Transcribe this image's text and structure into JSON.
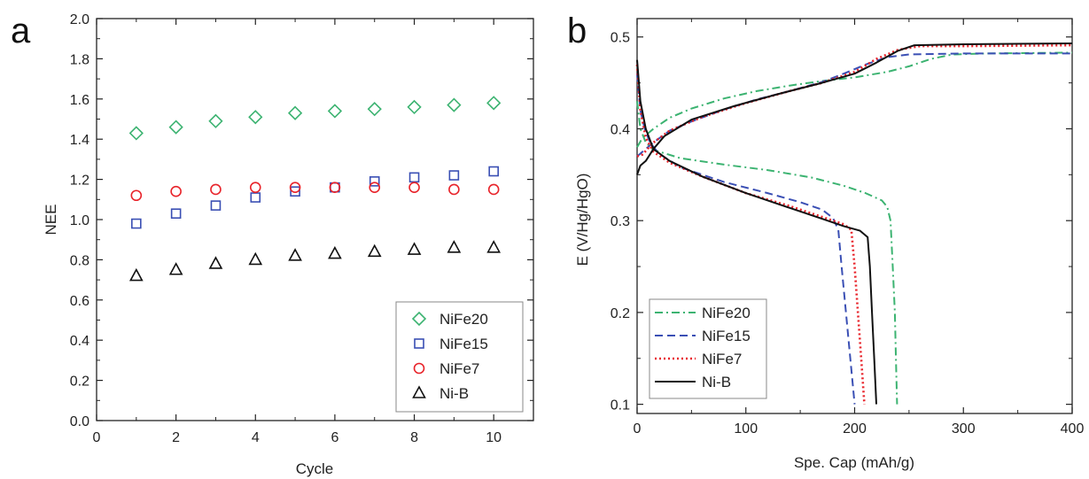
{
  "colors": {
    "NiFe20": "#3cb371",
    "NiFe15": "#3a4fb4",
    "NiFe7": "#e8232a",
    "Ni-B": "#111111"
  },
  "chart_data": [
    {
      "panel_label": "a",
      "type": "scatter",
      "xlabel": "Cycle",
      "ylabel": "NEE",
      "xlim": [
        0,
        11
      ],
      "ylim": [
        0.0,
        2.0
      ],
      "xticks": [
        "0",
        "2",
        "4",
        "6",
        "8",
        "10"
      ],
      "yticks": [
        "0.0",
        "0.2",
        "0.4",
        "0.6",
        "0.8",
        "1.0",
        "1.2",
        "1.4",
        "1.6",
        "1.8",
        "2.0"
      ],
      "x": [
        1,
        2,
        3,
        4,
        5,
        6,
        7,
        8,
        9,
        10
      ],
      "legend_position": "bottom-right",
      "series": [
        {
          "name": "NiFe20",
          "marker": "diamond",
          "values": [
            1.43,
            1.46,
            1.49,
            1.51,
            1.53,
            1.54,
            1.55,
            1.56,
            1.57,
            1.58
          ]
        },
        {
          "name": "NiFe15",
          "marker": "square",
          "values": [
            0.98,
            1.03,
            1.07,
            1.11,
            1.14,
            1.16,
            1.19,
            1.21,
            1.22,
            1.24
          ]
        },
        {
          "name": "NiFe7",
          "marker": "circle",
          "values": [
            1.12,
            1.14,
            1.15,
            1.16,
            1.16,
            1.16,
            1.16,
            1.16,
            1.15,
            1.15
          ]
        },
        {
          "name": "Ni-B",
          "marker": "triangle",
          "values": [
            0.72,
            0.75,
            0.78,
            0.8,
            0.82,
            0.83,
            0.84,
            0.85,
            0.86,
            0.86
          ]
        }
      ]
    },
    {
      "panel_label": "b",
      "type": "line",
      "xlabel": "Spe. Cap (mAh/g)",
      "ylabel": "E (V/Hg/HgO)",
      "xlim": [
        0,
        400
      ],
      "ylim": [
        0.09,
        0.52
      ],
      "xticks": [
        "0",
        "100",
        "200",
        "300",
        "400"
      ],
      "yticks": [
        "0.1",
        "0.2",
        "0.3",
        "0.4",
        "0.5"
      ],
      "legend_position": "bottom-left",
      "series": [
        {
          "name": "NiFe20",
          "dash": "dashdot",
          "charge": [
            [
              0,
              0.38
            ],
            [
              5,
              0.39
            ],
            [
              15,
              0.4
            ],
            [
              30,
              0.412
            ],
            [
              50,
              0.422
            ],
            [
              80,
              0.433
            ],
            [
              110,
              0.441
            ],
            [
              140,
              0.447
            ],
            [
              170,
              0.452
            ],
            [
              200,
              0.456
            ],
            [
              230,
              0.462
            ],
            [
              250,
              0.468
            ],
            [
              270,
              0.476
            ],
            [
              290,
              0.481
            ],
            [
              320,
              0.482
            ],
            [
              400,
              0.483
            ]
          ],
          "discharge": [
            [
              0,
              0.43
            ],
            [
              3,
              0.4
            ],
            [
              8,
              0.385
            ],
            [
              15,
              0.377
            ],
            [
              40,
              0.368
            ],
            [
              80,
              0.361
            ],
            [
              120,
              0.355
            ],
            [
              160,
              0.347
            ],
            [
              190,
              0.338
            ],
            [
              210,
              0.33
            ],
            [
              225,
              0.322
            ],
            [
              230,
              0.315
            ],
            [
              233,
              0.3
            ],
            [
              235,
              0.25
            ],
            [
              237,
              0.2
            ],
            [
              238,
              0.15
            ],
            [
              239,
              0.1
            ]
          ]
        },
        {
          "name": "NiFe15",
          "dash": "dashed",
          "charge": [
            [
              0,
              0.37
            ],
            [
              5,
              0.375
            ],
            [
              15,
              0.385
            ],
            [
              30,
              0.398
            ],
            [
              50,
              0.408
            ],
            [
              80,
              0.421
            ],
            [
              110,
              0.432
            ],
            [
              140,
              0.441
            ],
            [
              170,
              0.451
            ],
            [
              190,
              0.46
            ],
            [
              210,
              0.47
            ],
            [
              230,
              0.478
            ],
            [
              250,
              0.481
            ],
            [
              300,
              0.482
            ],
            [
              400,
              0.482
            ]
          ],
          "discharge": [
            [
              0,
              0.46
            ],
            [
              3,
              0.42
            ],
            [
              7,
              0.4
            ],
            [
              12,
              0.385
            ],
            [
              20,
              0.373
            ],
            [
              40,
              0.358
            ],
            [
              80,
              0.342
            ],
            [
              120,
              0.33
            ],
            [
              150,
              0.32
            ],
            [
              170,
              0.312
            ],
            [
              180,
              0.303
            ],
            [
              185,
              0.29
            ],
            [
              188,
              0.25
            ],
            [
              192,
              0.2
            ],
            [
              196,
              0.15
            ],
            [
              200,
              0.1
            ]
          ]
        },
        {
          "name": "NiFe7",
          "dash": "dotted",
          "charge": [
            [
              0,
              0.37
            ],
            [
              5,
              0.372
            ],
            [
              15,
              0.385
            ],
            [
              30,
              0.398
            ],
            [
              60,
              0.413
            ],
            [
              100,
              0.428
            ],
            [
              140,
              0.441
            ],
            [
              170,
              0.45
            ],
            [
              200,
              0.462
            ],
            [
              220,
              0.476
            ],
            [
              240,
              0.486
            ],
            [
              260,
              0.49
            ],
            [
              300,
              0.49
            ],
            [
              400,
              0.491
            ]
          ],
          "discharge": [
            [
              0,
              0.47
            ],
            [
              3,
              0.42
            ],
            [
              8,
              0.39
            ],
            [
              15,
              0.375
            ],
            [
              30,
              0.363
            ],
            [
              60,
              0.348
            ],
            [
              100,
              0.33
            ],
            [
              140,
              0.316
            ],
            [
              170,
              0.304
            ],
            [
              190,
              0.296
            ],
            [
              197,
              0.29
            ],
            [
              200,
              0.25
            ],
            [
              203,
              0.2
            ],
            [
              206,
              0.15
            ],
            [
              209,
              0.1
            ]
          ]
        },
        {
          "name": "Ni-B",
          "dash": "solid",
          "charge": [
            [
              0,
              0.35
            ],
            [
              3,
              0.36
            ],
            [
              8,
              0.365
            ],
            [
              15,
              0.378
            ],
            [
              25,
              0.392
            ],
            [
              50,
              0.41
            ],
            [
              90,
              0.425
            ],
            [
              130,
              0.438
            ],
            [
              170,
              0.45
            ],
            [
              200,
              0.46
            ],
            [
              220,
              0.472
            ],
            [
              240,
              0.485
            ],
            [
              255,
              0.491
            ],
            [
              300,
              0.492
            ],
            [
              400,
              0.493
            ]
          ],
          "discharge": [
            [
              0,
              0.475
            ],
            [
              3,
              0.43
            ],
            [
              8,
              0.4
            ],
            [
              15,
              0.378
            ],
            [
              30,
              0.365
            ],
            [
              60,
              0.348
            ],
            [
              100,
              0.33
            ],
            [
              140,
              0.314
            ],
            [
              170,
              0.302
            ],
            [
              190,
              0.294
            ],
            [
              205,
              0.289
            ],
            [
              212,
              0.282
            ],
            [
              214,
              0.25
            ],
            [
              216,
              0.2
            ],
            [
              218,
              0.15
            ],
            [
              220,
              0.1
            ]
          ]
        }
      ]
    }
  ]
}
